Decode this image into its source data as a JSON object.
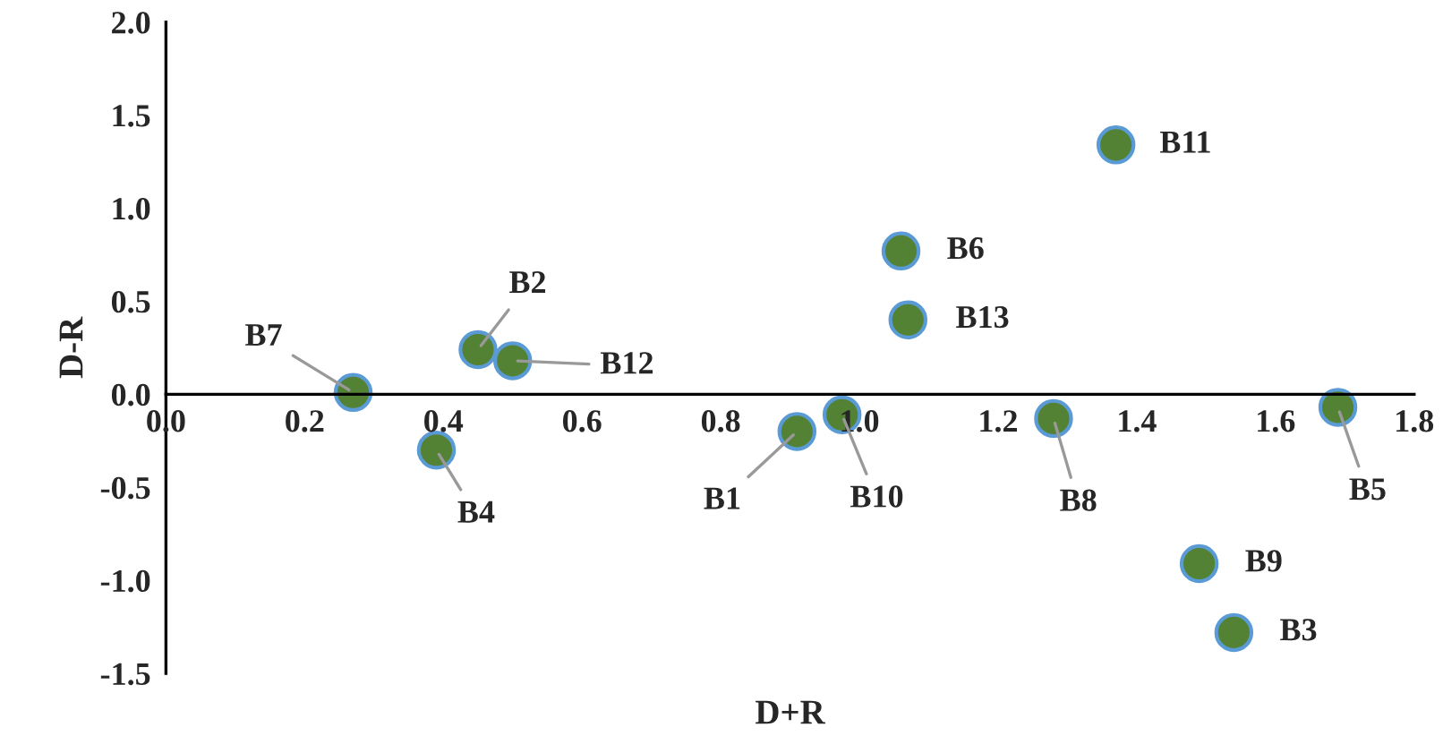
{
  "chart_data": {
    "type": "scatter",
    "xlabel": "D+R",
    "ylabel": "D-R",
    "x": [
      0.91,
      0.45,
      1.54,
      0.39,
      1.69,
      1.06,
      0.27,
      1.28,
      1.49,
      0.975,
      1.37,
      0.5,
      1.07
    ],
    "values": [
      -0.2,
      0.24,
      -1.28,
      -0.3,
      -0.07,
      0.77,
      0.01,
      -0.13,
      -0.91,
      -0.11,
      1.34,
      0.18,
      0.4
    ],
    "color": "#548235",
    "marker": "circle",
    "grid": false,
    "legend": false,
    "annotations": [
      {
        "text": "B1",
        "x": 0.91,
        "y": -0.2
      },
      {
        "text": "B2",
        "x": 0.45,
        "y": 0.24
      },
      {
        "text": "B3",
        "x": 1.54,
        "y": -1.28
      },
      {
        "text": "B4",
        "x": 0.39,
        "y": -0.3
      },
      {
        "text": "B5",
        "x": 1.69,
        "y": -0.07
      },
      {
        "text": "B6",
        "x": 1.06,
        "y": 0.77
      },
      {
        "text": "B7",
        "x": 0.27,
        "y": 0.01
      },
      {
        "text": "B8",
        "x": 1.28,
        "y": -0.13
      },
      {
        "text": "B9",
        "x": 1.49,
        "y": -0.91
      },
      {
        "text": "B10",
        "x": 0.975,
        "y": -0.11
      },
      {
        "text": "B11",
        "x": 1.37,
        "y": 1.34
      },
      {
        "text": "B12",
        "x": 0.5,
        "y": 0.18
      },
      {
        "text": "B13",
        "x": 1.07,
        "y": 0.4
      }
    ],
    "xlim": [
      0.0,
      1.8
    ],
    "xticks": [
      {
        "value": 0.0,
        "label": "0.0"
      },
      {
        "value": 0.2,
        "label": "0.2"
      },
      {
        "value": 0.4,
        "label": "0.4"
      },
      {
        "value": 0.6,
        "label": "0.6"
      },
      {
        "value": 0.8,
        "label": "0.8"
      },
      {
        "value": 1.0,
        "label": "1.0"
      },
      {
        "value": 1.2,
        "label": "1.2"
      },
      {
        "value": 1.4,
        "label": "1.4"
      },
      {
        "value": 1.6,
        "label": "1.6"
      },
      {
        "value": 1.8,
        "label": "1.8"
      }
    ],
    "ylim": [
      -1.5,
      2.0
    ],
    "yticks": [
      {
        "value": -1.5,
        "label": "-1.5"
      },
      {
        "value": -1.0,
        "label": "-1.0"
      },
      {
        "value": -0.5,
        "label": "-0.5"
      },
      {
        "value": 0.0,
        "label": "0.0"
      },
      {
        "value": 0.5,
        "label": "0.5"
      },
      {
        "value": 1.0,
        "label": "1.0"
      },
      {
        "value": 1.5,
        "label": "1.5"
      },
      {
        "value": 2.0,
        "label": "2.0"
      }
    ]
  }
}
